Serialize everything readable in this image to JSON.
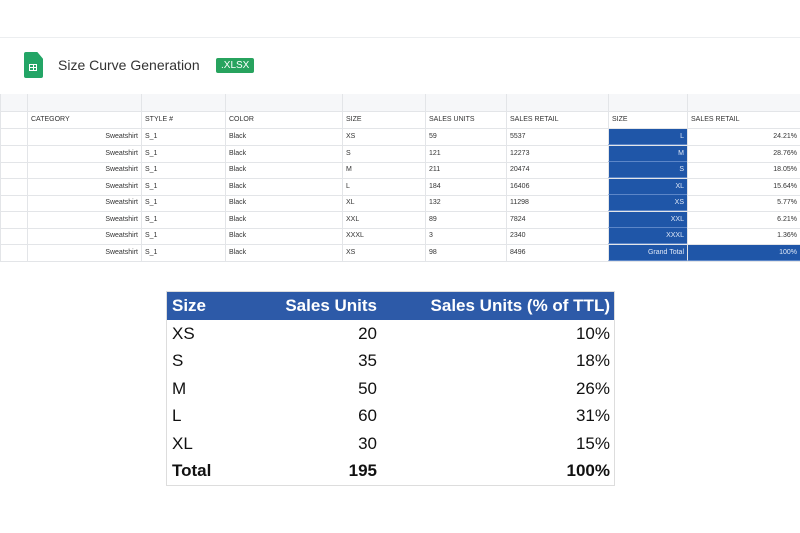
{
  "header": {
    "title": "Size Curve Generation",
    "badge": ".XLSX",
    "icon": "google-sheets-icon"
  },
  "sheet": {
    "columns": [
      "CATEGORY",
      "STYLE #",
      "COLOR",
      "SIZE",
      "SALES UNITS",
      "SALES RETAIL",
      "SIZE",
      "SALES RETAIL"
    ],
    "rows": [
      [
        "Sweatshirt",
        "S_1",
        "Black",
        "XS",
        "59",
        "5537",
        "L",
        "24.21%"
      ],
      [
        "Sweatshirt",
        "S_1",
        "Black",
        "S",
        "121",
        "12273",
        "M",
        "28.76%"
      ],
      [
        "Sweatshirt",
        "S_1",
        "Black",
        "M",
        "211",
        "20474",
        "S",
        "18.05%"
      ],
      [
        "Sweatshirt",
        "S_1",
        "Black",
        "L",
        "184",
        "16406",
        "XL",
        "15.64%"
      ],
      [
        "Sweatshirt",
        "S_1",
        "Black",
        "XL",
        "132",
        "11298",
        "XS",
        "5.77%"
      ],
      [
        "Sweatshirt",
        "S_1",
        "Black",
        "XXL",
        "89",
        "7824",
        "XXL",
        "6.21%"
      ],
      [
        "Sweatshirt",
        "S_1",
        "Black",
        "XXXL",
        "3",
        "2340",
        "XXXL",
        "1.36%"
      ],
      [
        "Sweatshirt",
        "S_1",
        "Black",
        "XS",
        "98",
        "8496",
        "Grand Total",
        "100%"
      ]
    ],
    "highlight_color": "#1f56a8"
  },
  "summary": {
    "headers": [
      "Size",
      "Sales Units",
      "Sales Units (% of TTL)"
    ],
    "rows": [
      [
        "XS",
        "20",
        "10%"
      ],
      [
        "S",
        "35",
        "18%"
      ],
      [
        "M",
        "50",
        "26%"
      ],
      [
        "L",
        "60",
        "31%"
      ],
      [
        "XL",
        "30",
        "15%"
      ]
    ],
    "total": [
      "Total",
      "195",
      "100%"
    ],
    "header_color": "#2d5aa8"
  }
}
